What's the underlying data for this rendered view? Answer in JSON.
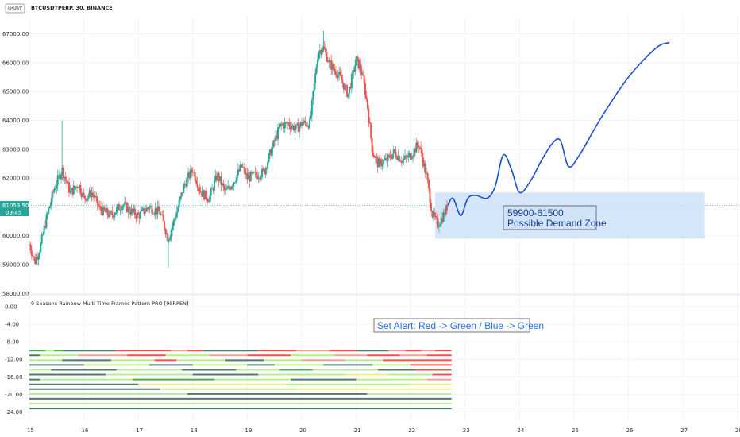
{
  "header": {
    "currency_badge": "USDT",
    "symbol_line": "BTCUSDTPERP, 30, BINANCE"
  },
  "price_tag": {
    "price": "61053.50",
    "countdown": "09:45"
  },
  "indicator": {
    "title": "9 Seasons Rainbow Multi Time Frames Pattern PRO [9SRPEN]"
  },
  "annotations": {
    "zone_label_1": "59900-61500",
    "zone_label_2": "Possible Demand Zone",
    "alert_label": "Set Alert: Red -> Green / Blue -> Green"
  },
  "colors": {
    "up": "#26a69a",
    "down": "#ef5350",
    "projection": "#1f4fd1",
    "zone_fill": "#cfe2f8",
    "band_red": "#ef5350",
    "band_green": "#4caf50",
    "band_lightgreen": "#b5f08c",
    "band_yellow": "#f7e98a",
    "band_darkgreen": "#4d7d6a",
    "band_salmon": "#f4a195"
  },
  "chart_data": [
    {
      "type": "candlestick",
      "title": "BTCUSDTPERP, 30, BINANCE",
      "x_ticks": [
        "15",
        "16",
        "17",
        "18",
        "19",
        "20",
        "21",
        "22",
        "23",
        "24",
        "25",
        "26",
        "27",
        "28"
      ],
      "x_range": [
        15,
        28
      ],
      "y_ticks": [
        "58000.00",
        "59000.00",
        "60000.00",
        "61000.00",
        "62000.00",
        "63000.00",
        "64000.00",
        "65000.00",
        "66000.00",
        "67000.00"
      ],
      "ylim": [
        58000,
        67200
      ],
      "last_price": 61053.5,
      "price_path": [
        [
          15.0,
          59700
        ],
        [
          15.1,
          59100
        ],
        [
          15.2,
          59600
        ],
        [
          15.3,
          60500
        ],
        [
          15.45,
          61600
        ],
        [
          15.6,
          62300
        ],
        [
          15.75,
          61500
        ],
        [
          15.9,
          61800
        ],
        [
          16.0,
          61300
        ],
        [
          16.15,
          61500
        ],
        [
          16.3,
          60900
        ],
        [
          16.5,
          60700
        ],
        [
          16.7,
          61100
        ],
        [
          16.9,
          60800
        ],
        [
          17.0,
          60700
        ],
        [
          17.2,
          61000
        ],
        [
          17.4,
          60800
        ],
        [
          17.55,
          59900
        ],
        [
          17.7,
          60800
        ],
        [
          17.85,
          61800
        ],
        [
          18.0,
          62300
        ],
        [
          18.15,
          61500
        ],
        [
          18.3,
          61300
        ],
        [
          18.45,
          62100
        ],
        [
          18.6,
          61500
        ],
        [
          18.75,
          61900
        ],
        [
          18.9,
          62400
        ],
        [
          19.0,
          62000
        ],
        [
          19.15,
          62100
        ],
        [
          19.3,
          62200
        ],
        [
          19.45,
          63000
        ],
        [
          19.6,
          63800
        ],
        [
          19.75,
          63900
        ],
        [
          19.9,
          63700
        ],
        [
          20.0,
          63900
        ],
        [
          20.15,
          63900
        ],
        [
          20.3,
          66400
        ],
        [
          20.4,
          66500
        ],
        [
          20.5,
          66000
        ],
        [
          20.7,
          65500
        ],
        [
          20.85,
          64900
        ],
        [
          21.0,
          66100
        ],
        [
          21.1,
          65700
        ],
        [
          21.2,
          64600
        ],
        [
          21.3,
          62900
        ],
        [
          21.4,
          62500
        ],
        [
          21.55,
          62600
        ],
        [
          21.7,
          62900
        ],
        [
          21.85,
          62600
        ],
        [
          22.0,
          62800
        ],
        [
          22.15,
          63200
        ],
        [
          22.3,
          62000
        ],
        [
          22.4,
          60700
        ],
        [
          22.5,
          60400
        ],
        [
          22.6,
          60700
        ],
        [
          22.68,
          61050
        ]
      ],
      "projection_path": [
        [
          22.68,
          61050
        ],
        [
          22.78,
          61300
        ],
        [
          22.92,
          60700
        ],
        [
          23.05,
          61300
        ],
        [
          23.2,
          61400
        ],
        [
          23.4,
          61300
        ],
        [
          23.55,
          61700
        ],
        [
          23.7,
          62800
        ],
        [
          23.85,
          62300
        ],
        [
          24.0,
          61500
        ],
        [
          24.2,
          61900
        ],
        [
          24.4,
          62600
        ],
        [
          24.6,
          63200
        ],
        [
          24.75,
          63300
        ],
        [
          24.9,
          62400
        ],
        [
          25.1,
          62800
        ],
        [
          25.5,
          64100
        ],
        [
          26.0,
          65500
        ],
        [
          26.5,
          66500
        ],
        [
          26.75,
          66700
        ]
      ],
      "demand_zone": {
        "x0": 22.45,
        "x1": 27.4,
        "y_low": 59900,
        "y_high": 61500,
        "label": [
          "59900-61500",
          "Possible Demand Zone"
        ]
      }
    },
    {
      "type": "heatmap",
      "title": "9 Seasons Rainbow Multi Time Frames Pattern PRO [9SRPEN]",
      "y_ticks": [
        "0.00",
        "-4.00",
        "-8.00",
        "-12.00",
        "-16.00",
        "-20.00",
        "-24.00"
      ],
      "ylim": [
        -24.5,
        1.5
      ],
      "x_range": [
        15,
        22.75
      ],
      "rows": [
        {
          "y": -10.0,
          "segments": [
            [
              15.0,
              15.3,
              "green"
            ],
            [
              15.3,
              15.45,
              "lightgreen"
            ],
            [
              15.45,
              15.6,
              "green"
            ],
            [
              15.6,
              16.6,
              "darkgreen"
            ],
            [
              16.6,
              17.6,
              "red"
            ],
            [
              17.6,
              17.9,
              "salmon"
            ],
            [
              17.9,
              18.2,
              "red"
            ],
            [
              18.2,
              19.2,
              "darkgreen"
            ],
            [
              19.2,
              19.9,
              "red"
            ],
            [
              19.9,
              20.5,
              "salmon"
            ],
            [
              20.5,
              21.0,
              "red"
            ],
            [
              21.0,
              21.6,
              "darkgreen"
            ],
            [
              21.6,
              21.9,
              "salmon"
            ],
            [
              21.9,
              22.2,
              "red"
            ],
            [
              22.2,
              22.45,
              "salmon"
            ],
            [
              22.45,
              22.75,
              "red"
            ]
          ]
        },
        {
          "y": -11.1,
          "segments": [
            [
              15.0,
              15.2,
              "darkgreen"
            ],
            [
              15.2,
              15.9,
              "lightgreen"
            ],
            [
              15.9,
              16.8,
              "salmon"
            ],
            [
              16.8,
              17.5,
              "red"
            ],
            [
              17.5,
              18.3,
              "lightgreen"
            ],
            [
              18.3,
              19.0,
              "salmon"
            ],
            [
              19.0,
              19.8,
              "red"
            ],
            [
              19.8,
              20.6,
              "lightgreen"
            ],
            [
              20.6,
              21.2,
              "salmon"
            ],
            [
              21.2,
              21.8,
              "red"
            ],
            [
              21.8,
              22.3,
              "salmon"
            ],
            [
              22.3,
              22.75,
              "red"
            ]
          ]
        },
        {
          "y": -12.2,
          "segments": [
            [
              15.0,
              15.6,
              "lightgreen"
            ],
            [
              15.6,
              16.5,
              "darkgreen"
            ],
            [
              16.5,
              17.3,
              "lightgreen"
            ],
            [
              17.3,
              17.7,
              "red"
            ],
            [
              17.7,
              18.6,
              "lightgreen"
            ],
            [
              18.6,
              19.3,
              "darkgreen"
            ],
            [
              19.3,
              20.0,
              "lightgreen"
            ],
            [
              20.0,
              20.8,
              "salmon"
            ],
            [
              20.8,
              21.5,
              "lightgreen"
            ],
            [
              21.5,
              22.0,
              "red"
            ],
            [
              22.0,
              22.75,
              "red"
            ]
          ]
        },
        {
          "y": -13.3,
          "segments": [
            [
              15.0,
              16.0,
              "darkgreen"
            ],
            [
              16.0,
              17.2,
              "lightgreen"
            ],
            [
              17.2,
              18.0,
              "darkgreen"
            ],
            [
              18.0,
              19.0,
              "lightgreen"
            ],
            [
              19.0,
              19.5,
              "darkgreen"
            ],
            [
              19.5,
              20.4,
              "lightgreen"
            ],
            [
              20.4,
              21.3,
              "darkgreen"
            ],
            [
              21.3,
              22.0,
              "lightgreen"
            ],
            [
              22.0,
              22.75,
              "red"
            ]
          ]
        },
        {
          "y": -14.4,
          "segments": [
            [
              15.0,
              15.4,
              "lightgreen"
            ],
            [
              15.4,
              16.6,
              "darkgreen"
            ],
            [
              16.6,
              17.8,
              "lightgreen"
            ],
            [
              17.8,
              18.8,
              "darkgreen"
            ],
            [
              18.8,
              19.6,
              "lightgreen"
            ],
            [
              19.6,
              20.2,
              "green"
            ],
            [
              20.2,
              21.4,
              "lightgreen"
            ],
            [
              21.4,
              22.1,
              "darkgreen"
            ],
            [
              22.1,
              22.75,
              "red"
            ]
          ]
        },
        {
          "y": -15.5,
          "segments": [
            [
              15.0,
              16.4,
              "darkgreen"
            ],
            [
              16.4,
              18.0,
              "lightgreen"
            ],
            [
              18.0,
              19.2,
              "darkgreen"
            ],
            [
              19.2,
              20.8,
              "lightgreen"
            ],
            [
              20.8,
              21.6,
              "yellow"
            ],
            [
              21.6,
              22.4,
              "lightgreen"
            ],
            [
              22.4,
              22.75,
              "red"
            ]
          ]
        },
        {
          "y": -16.6,
          "segments": [
            [
              15.0,
              15.2,
              "darkgreen"
            ],
            [
              15.2,
              16.9,
              "lightgreen"
            ],
            [
              16.9,
              18.4,
              "green"
            ],
            [
              18.4,
              19.8,
              "lightgreen"
            ],
            [
              19.8,
              21.0,
              "darkgreen"
            ],
            [
              21.0,
              22.3,
              "lightgreen"
            ],
            [
              22.3,
              22.75,
              "salmon"
            ]
          ]
        },
        {
          "y": -17.7,
          "segments": [
            [
              15.0,
              15.3,
              "darkgreen"
            ],
            [
              15.3,
              17.0,
              "darkgreen"
            ],
            [
              17.0,
              19.7,
              "yellow"
            ],
            [
              19.7,
              22.0,
              "lightgreen"
            ],
            [
              22.0,
              22.75,
              "yellow"
            ]
          ]
        },
        {
          "y": -18.8,
          "segments": [
            [
              15.0,
              17.4,
              "darkgreen"
            ],
            [
              17.4,
              19.9,
              "lightgreen"
            ],
            [
              19.9,
              21.5,
              "yellow"
            ],
            [
              21.5,
              22.75,
              "yellow"
            ]
          ]
        },
        {
          "y": -19.9,
          "segments": [
            [
              15.0,
              17.9,
              "lightgreen"
            ],
            [
              17.9,
              19.9,
              "darkgreen"
            ],
            [
              19.9,
              21.2,
              "darkgreen"
            ],
            [
              21.2,
              22.75,
              "lightgreen"
            ]
          ]
        },
        {
          "y": -21.0,
          "segments": [
            [
              15.0,
              22.75,
              "darkgreen"
            ]
          ]
        },
        {
          "y": -22.1,
          "segments": [
            [
              15.0,
              22.75,
              "lightgreen"
            ]
          ]
        },
        {
          "y": -23.2,
          "segments": [
            [
              15.0,
              22.75,
              "darkgreen"
            ]
          ]
        }
      ]
    }
  ]
}
